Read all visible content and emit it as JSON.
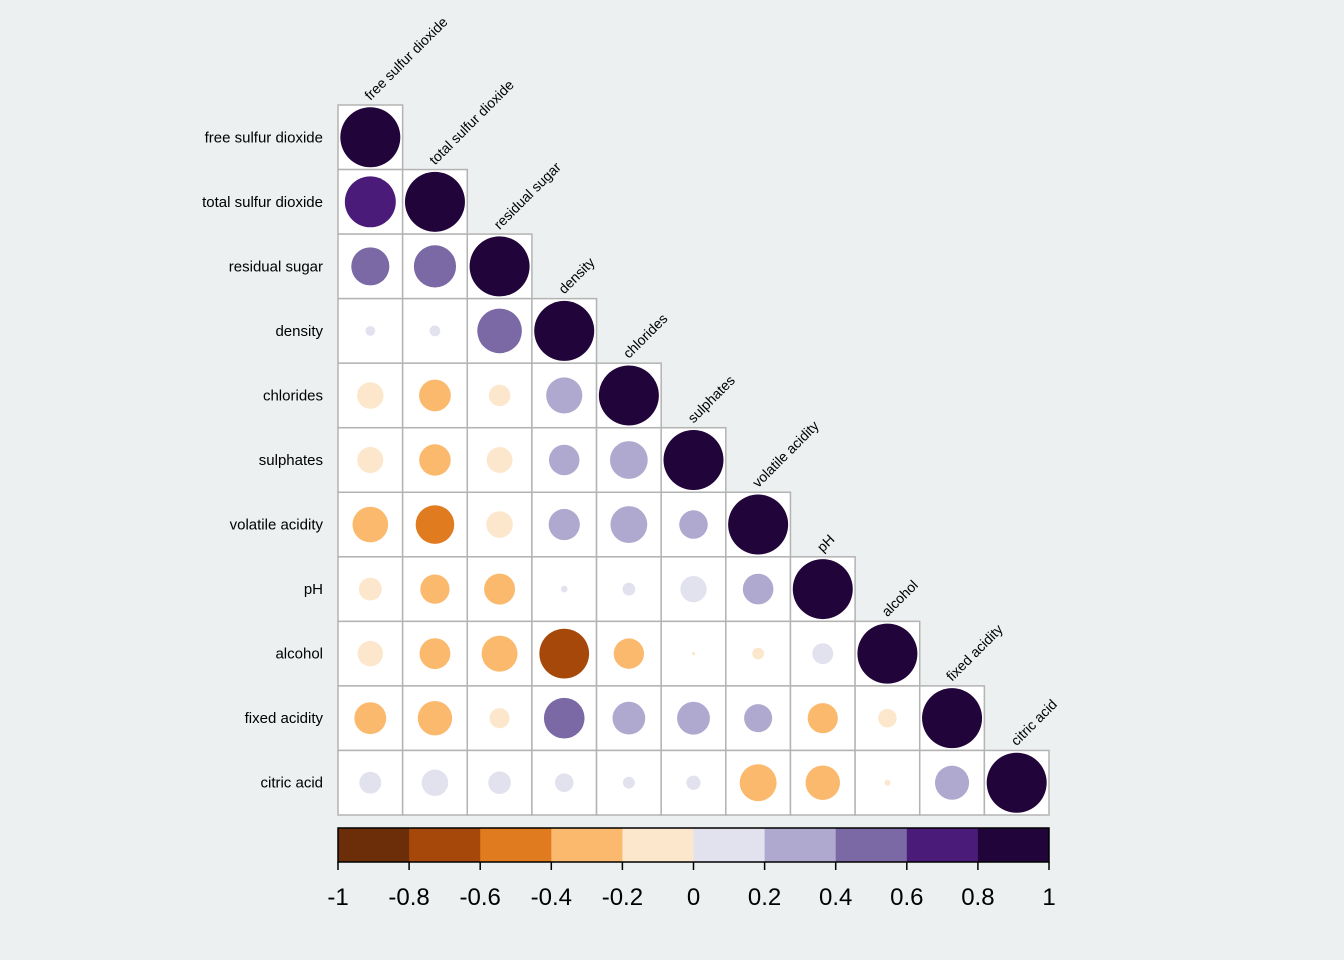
{
  "chart_data": {
    "type": "heatmap",
    "subtype": "correlation-circle-lower-triangle",
    "variables": [
      "free sulfur dioxide",
      "total sulfur dioxide",
      "residual sugar",
      "density",
      "chlorides",
      "sulphates",
      "volatile acidity",
      "pH",
      "alcohol",
      "fixed acidity",
      "citric acid"
    ],
    "matrix_lower": [
      [
        1
      ],
      [
        0.721,
        1
      ],
      [
        0.403,
        0.495,
        1
      ],
      [
        0.026,
        0.032,
        0.553,
        1
      ],
      [
        -0.195,
        -0.28,
        -0.129,
        0.363,
        1
      ],
      [
        -0.188,
        -0.276,
        -0.186,
        0.259,
        0.396,
        1
      ],
      [
        -0.353,
        -0.414,
        -0.196,
        0.271,
        0.377,
        0.226,
        1
      ],
      [
        -0.146,
        -0.238,
        -0.267,
        0.012,
        0.045,
        0.192,
        0.261,
        1
      ],
      [
        -0.18,
        -0.265,
        -0.359,
        -0.687,
        -0.257,
        -0.003,
        -0.038,
        0.121,
        1
      ],
      [
        -0.283,
        -0.329,
        -0.112,
        0.459,
        0.298,
        0.3,
        0.219,
        -0.253,
        -0.095,
        1
      ],
      [
        0.133,
        0.195,
        0.142,
        0.096,
        0.039,
        0.056,
        -0.378,
        -0.33,
        -0.01,
        0.324,
        1
      ]
    ],
    "colorbar": {
      "range": [
        -1,
        1
      ],
      "ticks": [
        "-1",
        "-0.8",
        "-0.6",
        "-0.4",
        "-0.2",
        "0",
        "0.2",
        "0.4",
        "0.6",
        "0.8",
        "1"
      ],
      "colors": [
        "#6b2e08",
        "#a6480a",
        "#e07b20",
        "#fbb96d",
        "#fde7cc",
        "#e2e1ee",
        "#b0a9cf",
        "#7a69a5",
        "#4a1b78",
        "#21043a"
      ]
    },
    "legend_placement": "bottom"
  }
}
